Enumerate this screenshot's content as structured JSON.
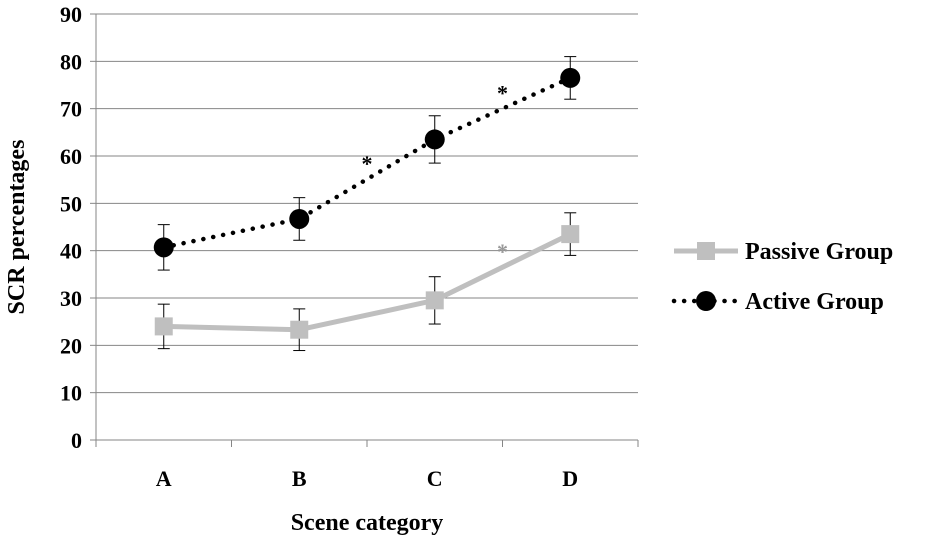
{
  "chart_data": {
    "type": "line",
    "categories": [
      "A",
      "B",
      "C",
      "D"
    ],
    "xlabel": "Scene category",
    "ylabel": "SCR percentages",
    "ylim": [
      0,
      90
    ],
    "yticks": [
      0,
      10,
      20,
      30,
      40,
      50,
      60,
      70,
      80,
      90
    ],
    "grid": "horizontal",
    "legend_position": "right",
    "series": [
      {
        "name": "Passive Group",
        "values": [
          24,
          23.3,
          29.5,
          43.5
        ],
        "error": [
          4.7,
          4.4,
          5,
          4.5
        ],
        "color": "#bfbfbf",
        "line_style": "solid",
        "marker": "square"
      },
      {
        "name": "Active Group",
        "values": [
          40.7,
          46.7,
          63.5,
          76.5
        ],
        "error": [
          4.8,
          4.5,
          5,
          4.5
        ],
        "color": "#000000",
        "line_style": "dotted",
        "marker": "circle"
      }
    ],
    "annotations": [
      {
        "text": "*",
        "series": "Active Group",
        "between": [
          "B",
          "C"
        ],
        "color": "#000000"
      },
      {
        "text": "*",
        "series": "Active Group",
        "between": [
          "C",
          "D"
        ],
        "color": "#000000"
      },
      {
        "text": "*",
        "series": "Passive Group",
        "between": [
          "C",
          "D"
        ],
        "color": "#999999"
      }
    ]
  }
}
